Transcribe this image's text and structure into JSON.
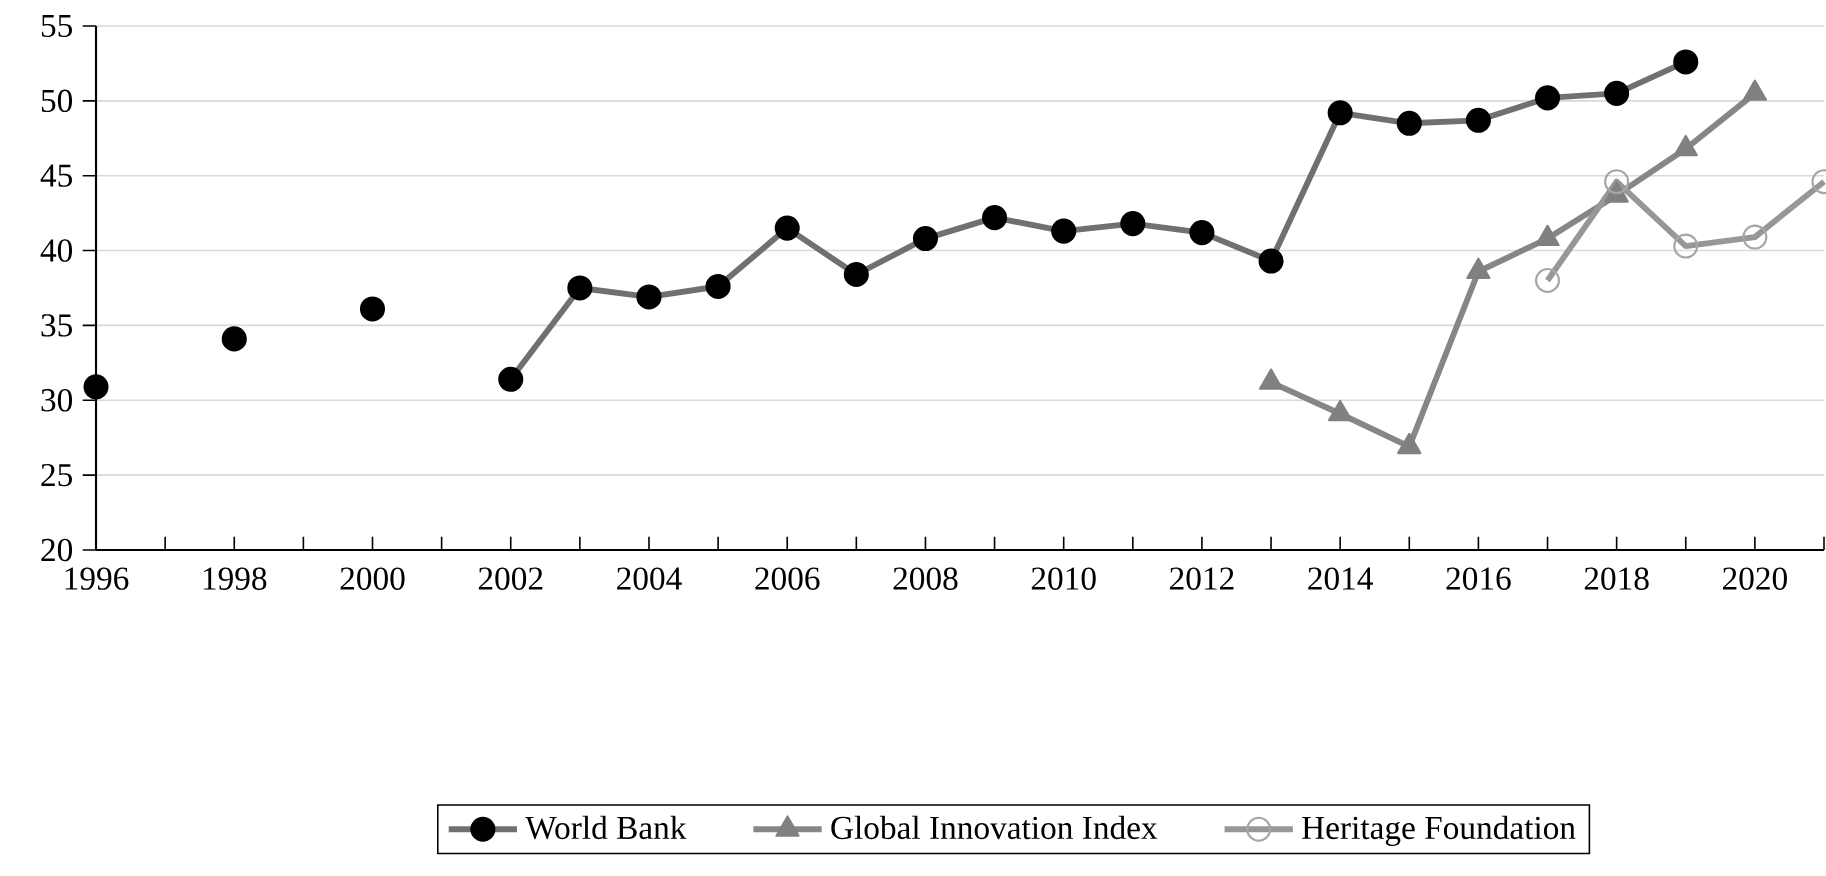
{
  "chart_data": {
    "type": "line",
    "x": [
      1996,
      1997,
      1998,
      1999,
      2000,
      2001,
      2002,
      2003,
      2004,
      2005,
      2006,
      2007,
      2008,
      2009,
      2010,
      2011,
      2012,
      2013,
      2014,
      2015,
      2016,
      2017,
      2018,
      2019
    ],
    "series": [
      {
        "name": "World Bank",
        "color": "#000000",
        "marker": "circle",
        "values": [
          30.9,
          null,
          34.1,
          null,
          36.1,
          null,
          31.4,
          37.5,
          36.9,
          37.6,
          41.5,
          38.4,
          40.8,
          42.2,
          41.3,
          41.8,
          41.2,
          39.3,
          49.2,
          48.5,
          48.7,
          50.2,
          50.5,
          52.6
        ]
      },
      {
        "name": "Global Innovation Index",
        "color": "#808080",
        "marker": "triangle",
        "x": [
          2013,
          2014,
          2015,
          2016,
          2017,
          2018,
          2019,
          2020
        ],
        "values": [
          31.2,
          29.1,
          26.9,
          38.6,
          40.8,
          43.7,
          46.8,
          50.5
        ]
      },
      {
        "name": "Heritage Foundation",
        "color": "#a6a6a6",
        "marker": "open circle",
        "x": [
          2017,
          2018,
          2019,
          2020,
          2021
        ],
        "values": [
          38.0,
          44.6,
          40.3,
          40.9,
          44.6
        ]
      }
    ],
    "xlim": [
      1996,
      2021
    ],
    "xticks": [
      1996,
      {
        "value": 1997,
        "label": null
      },
      1998,
      {
        "value": 1999,
        "label": null
      },
      2000,
      {
        "value": 2001,
        "label": null
      },
      2002,
      {
        "value": 2003,
        "label": null
      },
      2004,
      {
        "value": 2005,
        "label": null
      },
      2006,
      {
        "value": 2007,
        "label": null
      },
      2008,
      {
        "value": 2009,
        "label": null
      },
      2010,
      {
        "value": 2011,
        "label": null
      },
      2012,
      {
        "value": 2013,
        "label": null
      },
      2014,
      {
        "value": 2015,
        "label": null
      },
      2016,
      {
        "value": 2017,
        "label": null
      },
      2018,
      {
        "value": 2019,
        "label": null
      },
      2020,
      {
        "value": 2021,
        "label": null
      }
    ],
    "ylim": [
      20,
      55
    ],
    "yticks": [
      20,
      25,
      30,
      35,
      40,
      45,
      50,
      55
    ],
    "grid": "y",
    "legend": "bottom"
  }
}
